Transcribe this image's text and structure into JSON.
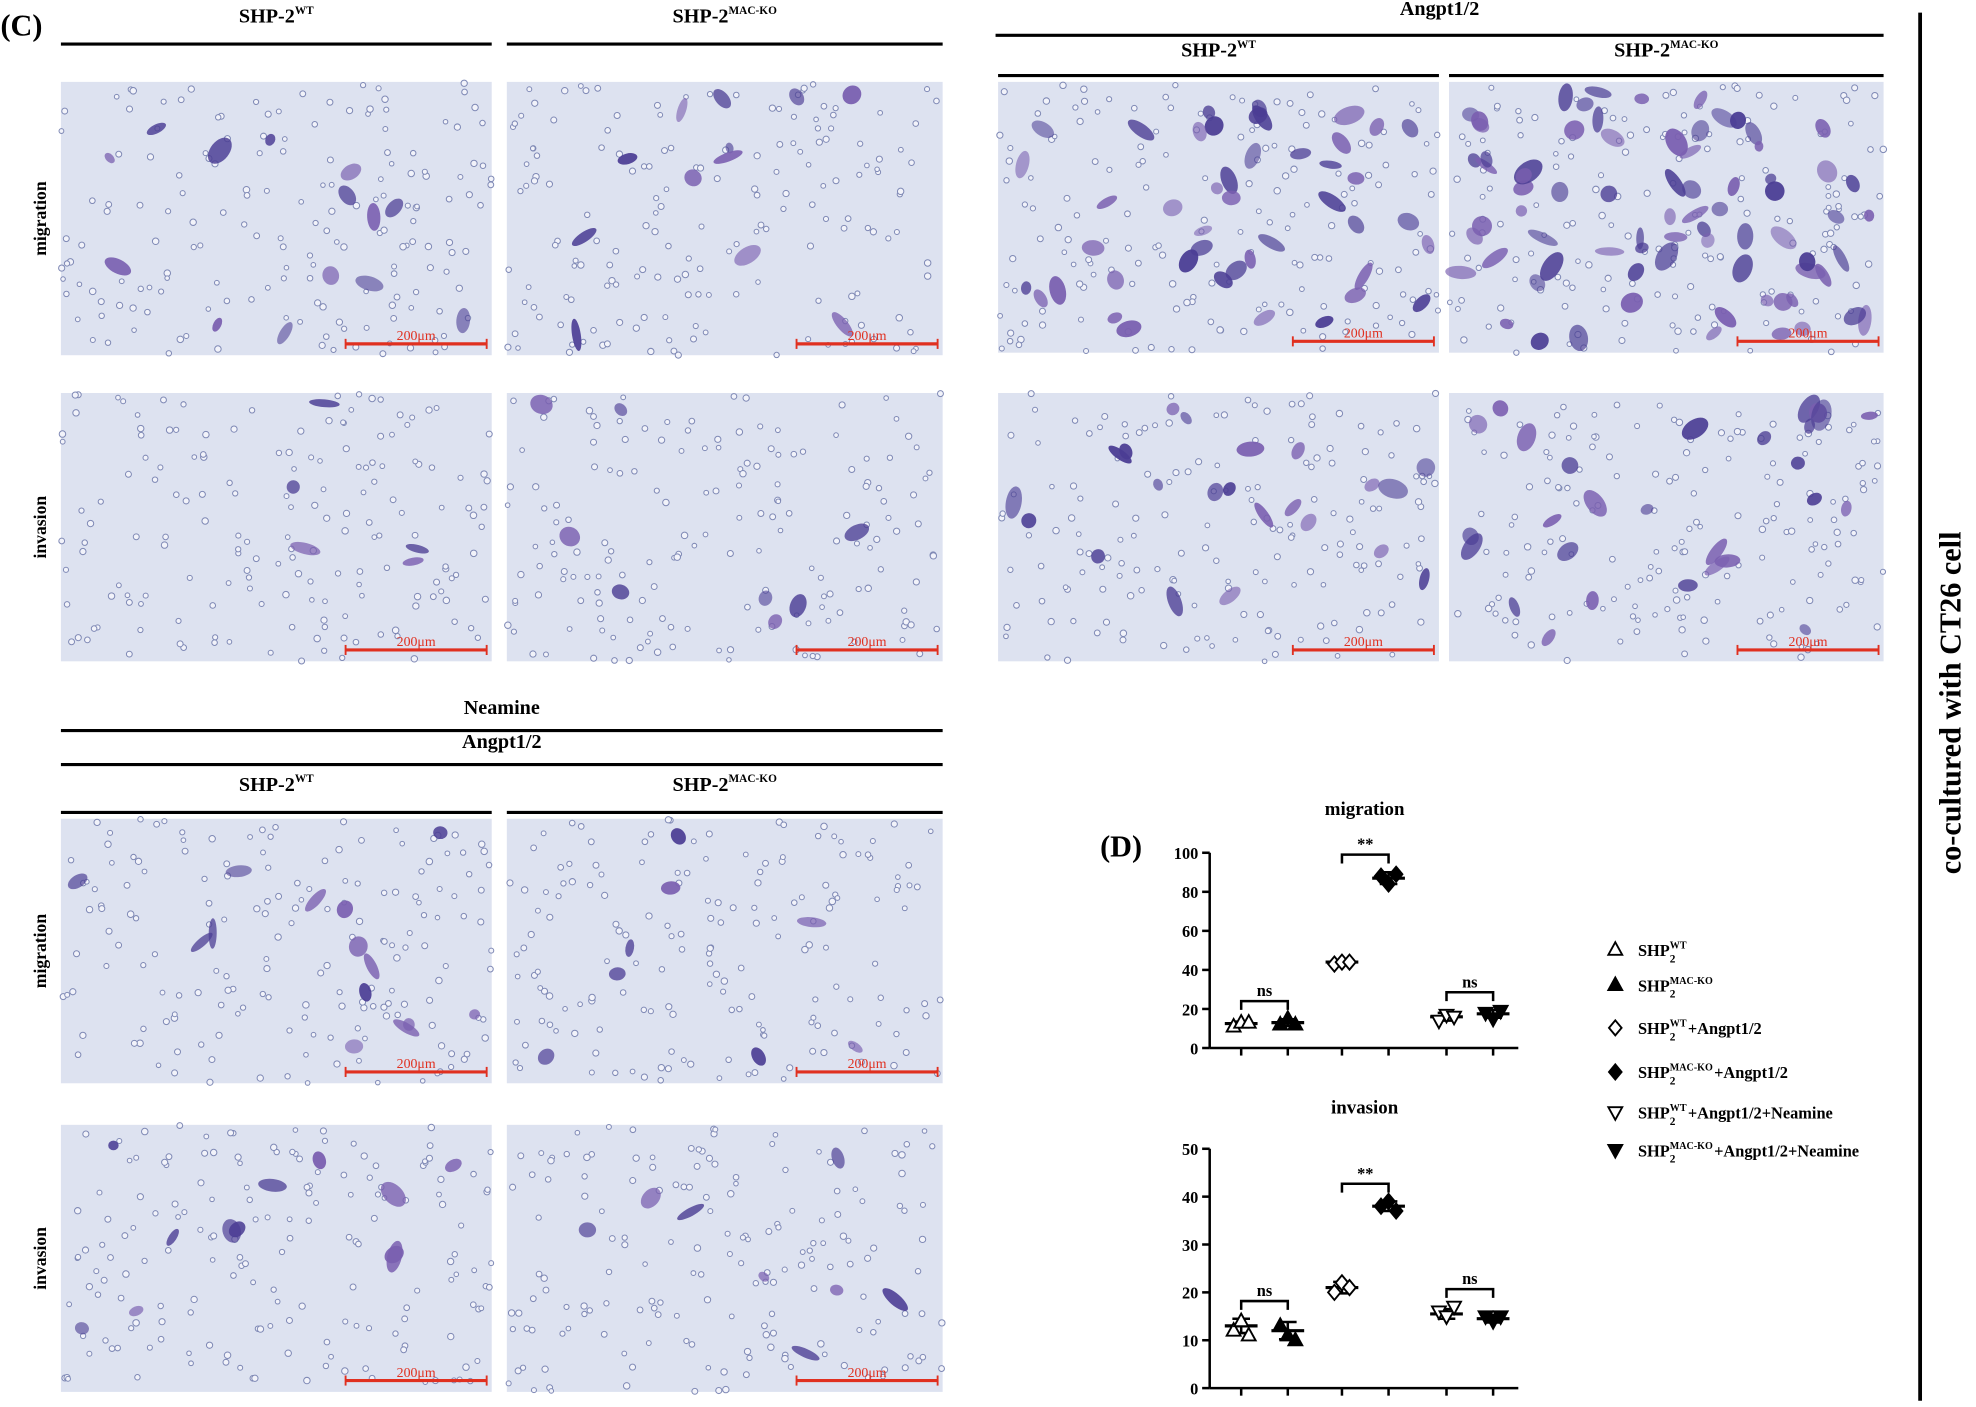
{
  "panel_c": {
    "label": "(C)",
    "scale_bar": "200μm",
    "row_labels": [
      "migration",
      "invasion"
    ],
    "blocks": [
      {
        "columns": [
          {
            "name": "SHP-2",
            "sup": "WT"
          },
          {
            "name": "SHP-2",
            "sup": "MAC-KO"
          }
        ]
      },
      {
        "headers": [
          "Angpt1/2"
        ],
        "columns": [
          {
            "name": "SHP-2",
            "sup": "WT"
          },
          {
            "name": "SHP-2",
            "sup": "MAC-KO"
          }
        ]
      },
      {
        "headers": [
          "Neamine",
          "Angpt1/2"
        ],
        "columns": [
          {
            "name": "SHP-2",
            "sup": "WT"
          },
          {
            "name": "SHP-2",
            "sup": "MAC-KO"
          }
        ]
      }
    ]
  },
  "side_label": "co-cultured with CT26 cell",
  "panel_d": {
    "label": "(D)",
    "legend": [
      {
        "base": "SHP",
        "sub": "2",
        "sup": "WT",
        "marker": "triangle-open"
      },
      {
        "base": "SHP",
        "sub": "2",
        "sup": "MAC-KO",
        "marker": "triangle"
      },
      {
        "base": "SHP",
        "sub": "2",
        "sup": "WT",
        "rest": "+Angpt1/2",
        "marker": "diamond-open"
      },
      {
        "base": "SHP",
        "sub": "2",
        "sup": "MAC-KO",
        "rest": "+Angpt1/2",
        "marker": "diamond"
      },
      {
        "base": "SHP",
        "sub": "2",
        "sup": "WT",
        "rest": "+Angpt1/2+Neamine",
        "marker": "triangle-down-open"
      },
      {
        "base": "SHP",
        "sub": "2",
        "sup": "MAC-KO",
        "rest": "+Angpt1/2+Neamine",
        "marker": "triangle-down"
      }
    ],
    "charts": [
      {
        "type": "scatter",
        "title": "migration",
        "ylim": [
          0,
          100
        ],
        "yticks": [
          0,
          20,
          40,
          60,
          80,
          100
        ],
        "series": [
          {
            "marker": "triangle-open",
            "values": [
              11,
              13,
              13
            ],
            "mean": 12.5,
            "sd": 1
          },
          {
            "marker": "triangle",
            "values": [
              12,
              15,
              12
            ],
            "mean": 13,
            "sd": 1.7
          },
          {
            "marker": "diamond-open",
            "values": [
              43,
              44,
              44
            ],
            "mean": 44,
            "sd": 0.6
          },
          {
            "marker": "diamond",
            "values": [
              88,
              84,
              89
            ],
            "mean": 87,
            "sd": 3
          },
          {
            "marker": "triangle-down-open",
            "values": [
              14,
              17,
              16
            ],
            "mean": 16,
            "sd": 2
          },
          {
            "marker": "triangle-down",
            "values": [
              18,
              15,
              19
            ],
            "mean": 17.5,
            "sd": 2
          }
        ],
        "comparisons": [
          {
            "groups": [
              0,
              1
            ],
            "label": "ns"
          },
          {
            "groups": [
              2,
              3
            ],
            "label": "**"
          },
          {
            "groups": [
              4,
              5
            ],
            "label": "ns"
          }
        ]
      },
      {
        "type": "scatter",
        "title": "invasion",
        "ylim": [
          0,
          50
        ],
        "yticks": [
          0,
          10,
          20,
          30,
          40,
          50
        ],
        "series": [
          {
            "marker": "triangle-open",
            "values": [
              12,
              14,
              11
            ],
            "mean": 13,
            "sd": 1.5
          },
          {
            "marker": "triangle",
            "values": [
              13,
              11,
              10
            ],
            "mean": 12,
            "sd": 1.8
          },
          {
            "marker": "diamond-open",
            "values": [
              20,
              22,
              21
            ],
            "mean": 21,
            "sd": 1.2
          },
          {
            "marker": "diamond",
            "values": [
              38,
              39,
              37
            ],
            "mean": 38,
            "sd": 1
          },
          {
            "marker": "triangle-down-open",
            "values": [
              16,
              15,
              17
            ],
            "mean": 15.5,
            "sd": 1
          },
          {
            "marker": "triangle-down",
            "values": [
              15,
              14,
              15
            ],
            "mean": 14.5,
            "sd": 0.8
          }
        ],
        "comparisons": [
          {
            "groups": [
              0,
              1
            ],
            "label": "ns"
          },
          {
            "groups": [
              2,
              3
            ],
            "label": "**"
          },
          {
            "groups": [
              4,
              5
            ],
            "label": "ns"
          }
        ]
      }
    ]
  }
}
